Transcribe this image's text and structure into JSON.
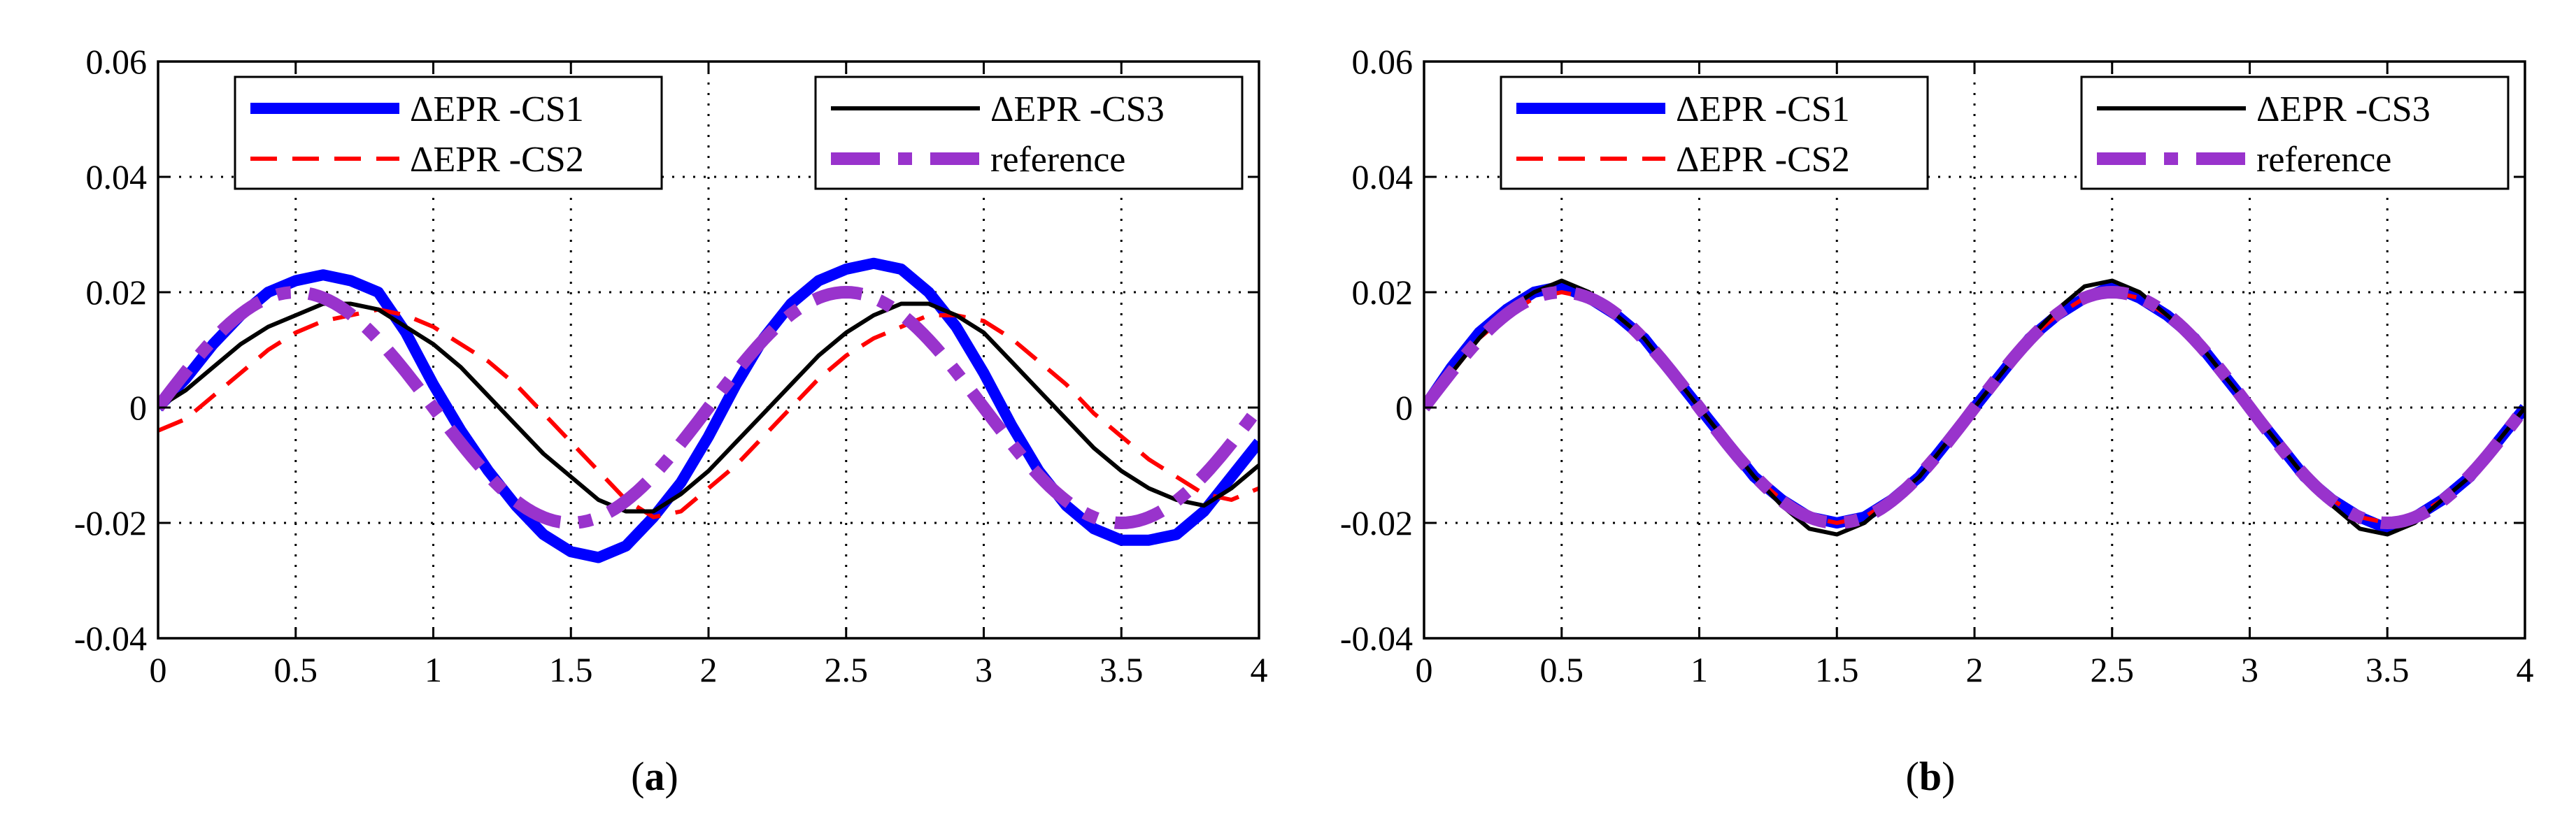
{
  "colors": {
    "cs1": "#0000ff",
    "cs2": "#ff0000",
    "cs3": "#000000",
    "reference": "#9933cc"
  },
  "chart_data": [
    {
      "panel": "a",
      "type": "line",
      "caption_prefix": "(",
      "caption_letter": "a",
      "caption_suffix": ")",
      "xlabel": "",
      "ylabel": "",
      "xlim": [
        0,
        4
      ],
      "ylim": [
        -0.04,
        0.06
      ],
      "xticks": [
        0,
        0.5,
        1,
        1.5,
        2,
        2.5,
        3,
        3.5,
        4
      ],
      "xtick_labels": [
        "0",
        "0.5",
        "1",
        "1.5",
        "2",
        "2.5",
        "3",
        "3.5",
        "4"
      ],
      "yticks": [
        -0.04,
        -0.02,
        0,
        0.02,
        0.04,
        0.06
      ],
      "ytick_labels": [
        "-0.04",
        "-0.02",
        "0",
        "0.02",
        "0.04",
        "0.06"
      ],
      "grid": true,
      "legend": [
        "top-left",
        "top-right"
      ],
      "series": [
        {
          "name": "ΔEPR -CS1",
          "id": "cs1",
          "style": "solid-thick",
          "x": [
            0,
            0.1,
            0.2,
            0.3,
            0.4,
            0.5,
            0.6,
            0.7,
            0.8,
            0.9,
            1.0,
            1.1,
            1.2,
            1.3,
            1.4,
            1.5,
            1.6,
            1.7,
            1.8,
            1.9,
            2.0,
            2.1,
            2.2,
            2.3,
            2.4,
            2.5,
            2.6,
            2.7,
            2.8,
            2.9,
            3.0,
            3.1,
            3.2,
            3.3,
            3.4,
            3.5,
            3.6,
            3.7,
            3.8,
            3.9,
            4.0
          ],
          "y": [
            0.0,
            0.005,
            0.011,
            0.016,
            0.02,
            0.022,
            0.023,
            0.022,
            0.02,
            0.013,
            0.004,
            -0.004,
            -0.011,
            -0.017,
            -0.022,
            -0.025,
            -0.026,
            -0.024,
            -0.019,
            -0.013,
            -0.005,
            0.004,
            0.012,
            0.018,
            0.022,
            0.024,
            0.025,
            0.024,
            0.02,
            0.014,
            0.006,
            -0.003,
            -0.011,
            -0.017,
            -0.021,
            -0.023,
            -0.023,
            -0.022,
            -0.018,
            -0.012,
            -0.006
          ]
        },
        {
          "name": "ΔEPR -CS2",
          "id": "cs2",
          "style": "dashed",
          "x": [
            0,
            0.1,
            0.2,
            0.3,
            0.4,
            0.5,
            0.6,
            0.7,
            0.8,
            0.9,
            1.0,
            1.1,
            1.2,
            1.3,
            1.4,
            1.5,
            1.6,
            1.7,
            1.8,
            1.9,
            2.0,
            2.1,
            2.2,
            2.3,
            2.4,
            2.5,
            2.6,
            2.7,
            2.8,
            2.9,
            3.0,
            3.1,
            3.2,
            3.3,
            3.4,
            3.5,
            3.6,
            3.7,
            3.8,
            3.9,
            4.0
          ],
          "y": [
            -0.004,
            -0.002,
            0.002,
            0.006,
            0.01,
            0.013,
            0.015,
            0.016,
            0.017,
            0.016,
            0.014,
            0.011,
            0.008,
            0.004,
            -0.001,
            -0.006,
            -0.011,
            -0.016,
            -0.019,
            -0.018,
            -0.014,
            -0.01,
            -0.005,
            0.0,
            0.005,
            0.009,
            0.012,
            0.014,
            0.016,
            0.016,
            0.015,
            0.012,
            0.008,
            0.004,
            -0.001,
            -0.005,
            -0.009,
            -0.012,
            -0.015,
            -0.016,
            -0.014
          ]
        },
        {
          "name": "ΔEPR -CS3",
          "id": "cs3",
          "style": "solid-thin",
          "x": [
            0,
            0.1,
            0.2,
            0.3,
            0.4,
            0.5,
            0.6,
            0.7,
            0.8,
            0.9,
            1.0,
            1.1,
            1.2,
            1.3,
            1.4,
            1.5,
            1.6,
            1.7,
            1.8,
            1.9,
            2.0,
            2.1,
            2.2,
            2.3,
            2.4,
            2.5,
            2.6,
            2.7,
            2.8,
            2.9,
            3.0,
            3.1,
            3.2,
            3.3,
            3.4,
            3.5,
            3.6,
            3.7,
            3.8,
            3.9,
            4.0
          ],
          "y": [
            0.0,
            0.003,
            0.007,
            0.011,
            0.014,
            0.016,
            0.018,
            0.018,
            0.017,
            0.014,
            0.011,
            0.007,
            0.002,
            -0.003,
            -0.008,
            -0.012,
            -0.016,
            -0.018,
            -0.018,
            -0.015,
            -0.011,
            -0.006,
            -0.001,
            0.004,
            0.009,
            0.013,
            0.016,
            0.018,
            0.018,
            0.016,
            0.013,
            0.008,
            0.003,
            -0.002,
            -0.007,
            -0.011,
            -0.014,
            -0.016,
            -0.017,
            -0.014,
            -0.01
          ]
        },
        {
          "name": "reference",
          "id": "reference",
          "style": "dashdot-thick",
          "function": "0.02*sin(pi*x)"
        }
      ]
    },
    {
      "panel": "b",
      "type": "line",
      "caption_prefix": "(",
      "caption_letter": "b",
      "caption_suffix": ")",
      "xlabel": "",
      "ylabel": "",
      "xlim": [
        0,
        4
      ],
      "ylim": [
        -0.04,
        0.06
      ],
      "xticks": [
        0,
        0.5,
        1,
        1.5,
        2,
        2.5,
        3,
        3.5,
        4
      ],
      "xtick_labels": [
        "0",
        "0.5",
        "1",
        "1.5",
        "2",
        "2.5",
        "3",
        "3.5",
        "4"
      ],
      "yticks": [
        -0.04,
        -0.02,
        0,
        0.02,
        0.04,
        0.06
      ],
      "ytick_labels": [
        "-0.04",
        "-0.02",
        "0",
        "0.02",
        "0.04",
        "0.06"
      ],
      "grid": true,
      "legend": [
        "top-left",
        "top-right"
      ],
      "series": [
        {
          "name": "ΔEPR -CS1",
          "id": "cs1",
          "style": "solid-thick",
          "x": [
            0,
            0.1,
            0.2,
            0.3,
            0.4,
            0.5,
            0.6,
            0.7,
            0.8,
            0.9,
            1.0,
            1.1,
            1.2,
            1.3,
            1.4,
            1.5,
            1.6,
            1.7,
            1.8,
            1.9,
            2.0,
            2.1,
            2.2,
            2.3,
            2.4,
            2.5,
            2.6,
            2.7,
            2.8,
            2.9,
            3.0,
            3.1,
            3.2,
            3.3,
            3.4,
            3.5,
            3.6,
            3.7,
            3.8,
            3.9,
            4.0
          ],
          "y": [
            0.0,
            0.007,
            0.013,
            0.017,
            0.02,
            0.021,
            0.019,
            0.016,
            0.012,
            0.006,
            0.0,
            -0.006,
            -0.012,
            -0.016,
            -0.019,
            -0.02,
            -0.019,
            -0.016,
            -0.012,
            -0.006,
            0.0,
            0.006,
            0.012,
            0.016,
            0.019,
            0.021,
            0.019,
            0.016,
            0.012,
            0.006,
            0.0,
            -0.006,
            -0.012,
            -0.016,
            -0.019,
            -0.021,
            -0.019,
            -0.016,
            -0.012,
            -0.006,
            0.0
          ]
        },
        {
          "name": "ΔEPR -CS2",
          "id": "cs2",
          "style": "dashed",
          "x": [
            0,
            0.1,
            0.2,
            0.3,
            0.4,
            0.5,
            0.6,
            0.7,
            0.8,
            0.9,
            1.0,
            1.1,
            1.2,
            1.3,
            1.4,
            1.5,
            1.6,
            1.7,
            1.8,
            1.9,
            2.0,
            2.1,
            2.2,
            2.3,
            2.4,
            2.5,
            2.6,
            2.7,
            2.8,
            2.9,
            3.0,
            3.1,
            3.2,
            3.3,
            3.4,
            3.5,
            3.6,
            3.7,
            3.8,
            3.9,
            4.0
          ],
          "y": [
            0.0,
            0.006,
            0.012,
            0.016,
            0.019,
            0.02,
            0.019,
            0.016,
            0.012,
            0.006,
            0.0,
            -0.006,
            -0.012,
            -0.016,
            -0.019,
            -0.02,
            -0.019,
            -0.016,
            -0.012,
            -0.006,
            0.0,
            0.006,
            0.012,
            0.016,
            0.019,
            0.02,
            0.019,
            0.016,
            0.012,
            0.006,
            0.0,
            -0.006,
            -0.012,
            -0.016,
            -0.019,
            -0.02,
            -0.019,
            -0.016,
            -0.012,
            -0.006,
            0.0
          ]
        },
        {
          "name": "ΔEPR -CS3",
          "id": "cs3",
          "style": "solid-thin",
          "x": [
            0,
            0.1,
            0.2,
            0.3,
            0.4,
            0.5,
            0.6,
            0.7,
            0.8,
            0.9,
            1.0,
            1.1,
            1.2,
            1.3,
            1.4,
            1.5,
            1.6,
            1.7,
            1.8,
            1.9,
            2.0,
            2.1,
            2.2,
            2.3,
            2.4,
            2.5,
            2.6,
            2.7,
            2.8,
            2.9,
            3.0,
            3.1,
            3.2,
            3.3,
            3.4,
            3.5,
            3.6,
            3.7,
            3.8,
            3.9,
            4.0
          ],
          "y": [
            0.0,
            0.006,
            0.012,
            0.017,
            0.02,
            0.022,
            0.02,
            0.016,
            0.012,
            0.006,
            0.0,
            -0.006,
            -0.012,
            -0.017,
            -0.021,
            -0.022,
            -0.02,
            -0.016,
            -0.012,
            -0.006,
            0.0,
            0.006,
            0.012,
            0.017,
            0.021,
            0.022,
            0.02,
            0.016,
            0.012,
            0.006,
            0.0,
            -0.006,
            -0.012,
            -0.017,
            -0.021,
            -0.022,
            -0.02,
            -0.016,
            -0.012,
            -0.006,
            0.0
          ]
        },
        {
          "name": "reference",
          "id": "reference",
          "style": "dashdot-thick",
          "function": "0.02*sin(pi*x)"
        }
      ]
    }
  ]
}
